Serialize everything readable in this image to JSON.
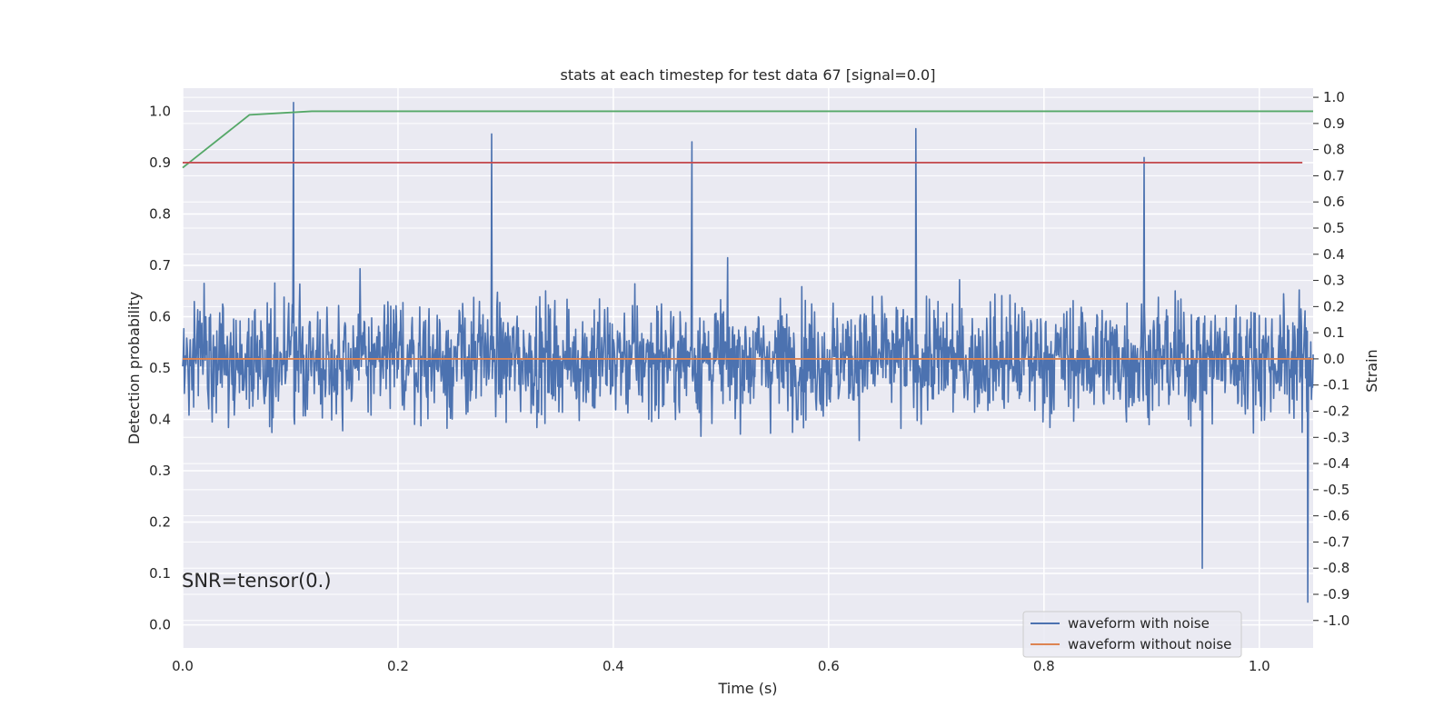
{
  "chart_data": {
    "type": "line",
    "title": "stats at each timestep for test data 67 [signal=0.0]",
    "xlabel": "Time (s)",
    "ylabel_left": "Detection probability",
    "ylabel_right": "Strain",
    "xlim": [
      0.0,
      1.05
    ],
    "ylim_left": [
      -0.045,
      1.045
    ],
    "ylim_right": [
      -1.105,
      1.035
    ],
    "x_ticks": [
      "0.0",
      "0.2",
      "0.4",
      "0.6",
      "0.8",
      "1.0"
    ],
    "y_ticks_left": [
      "0.0",
      "0.1",
      "0.2",
      "0.3",
      "0.4",
      "0.5",
      "0.6",
      "0.7",
      "0.8",
      "0.9",
      "1.0"
    ],
    "y_ticks_right": [
      "1.0",
      "0.9",
      "0.8",
      "0.7",
      "0.6",
      "0.5",
      "0.4",
      "0.3",
      "0.2",
      "0.1",
      "0.0",
      "-0.1",
      "-0.2",
      "-0.3",
      "-0.4",
      "-0.5",
      "-0.6",
      "-0.7",
      "-0.8",
      "-0.9",
      "-1.0"
    ],
    "grid": true,
    "legend_position": "lower-right",
    "annotation": "SNR=tensor(0.)",
    "colors": {
      "waveform_with_noise": "#4c72b0",
      "waveform_without_noise": "#dd8452",
      "detection_probability": "#55a868",
      "threshold": "#c44e52",
      "plot_background": "#eaeaf2",
      "grid": "#ffffff"
    },
    "series": [
      {
        "name": "waveform with noise",
        "axis": "right",
        "note_values": "dense gaussian-like noise, about 2000 samples over 0-1.05 s, range approx -0.93 to 0.98",
        "peaks": [
          {
            "x": 0.103,
            "y": 0.98
          },
          {
            "x": 0.287,
            "y": 0.86
          },
          {
            "x": 0.473,
            "y": 0.83
          },
          {
            "x": 0.681,
            "y": 0.88
          },
          {
            "x": 0.893,
            "y": 0.77
          },
          {
            "x": 0.947,
            "y": -0.8
          },
          {
            "x": 1.045,
            "y": -0.93
          }
        ]
      },
      {
        "name": "waveform without noise",
        "axis": "right",
        "x": [
          0.0,
          1.05
        ],
        "y": [
          0.0,
          0.0
        ]
      },
      {
        "axis": "left",
        "x": [
          0.0,
          0.062,
          0.103,
          0.12,
          1.05
        ],
        "y": [
          0.89,
          0.993,
          0.998,
          1.0,
          1.0
        ]
      },
      {
        "axis": "left",
        "x": [
          0.0,
          1.04
        ],
        "y": [
          0.9,
          0.9
        ]
      }
    ]
  }
}
